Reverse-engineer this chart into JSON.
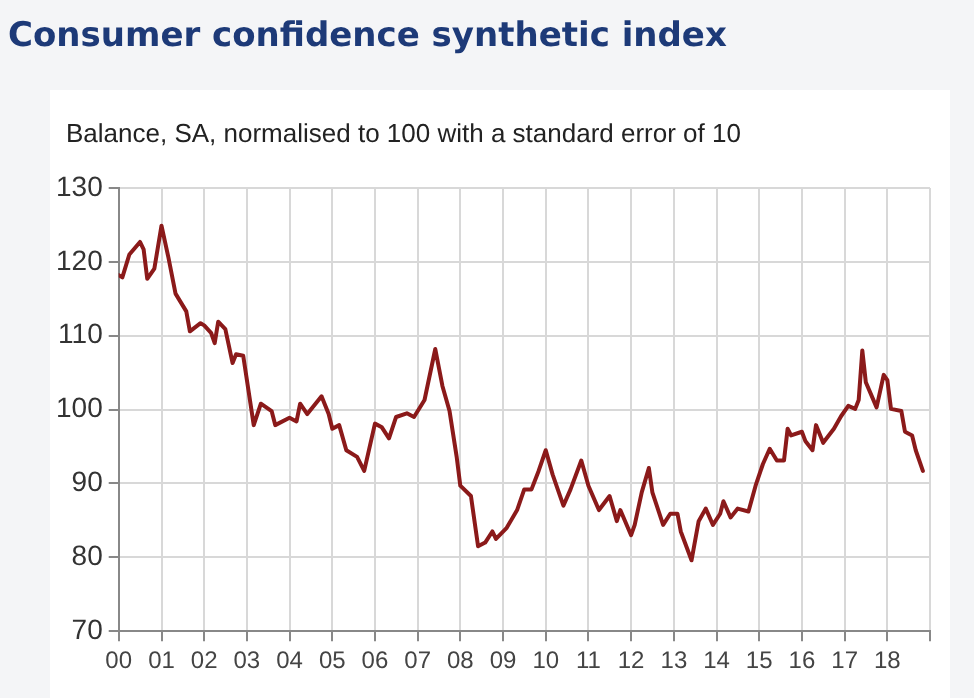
{
  "chart_data": {
    "type": "line",
    "title": "Consumer confidence synthetic index",
    "subtitle": "Balance, SA, normalised to 100 with a standard error of 10",
    "x": [
      "2000-01",
      "2000-02",
      "2000-04",
      "2000-07",
      "2000-08",
      "2000-09",
      "2000-11",
      "2001-01",
      "2001-03",
      "2001-05",
      "2001-08",
      "2001-09",
      "2001-12",
      "2002-01",
      "2002-03",
      "2002-04",
      "2002-05",
      "2002-07",
      "2002-08",
      "2002-09",
      "2002-10",
      "2002-12",
      "2003-03",
      "2003-05",
      "2003-08",
      "2003-09",
      "2004-01",
      "2004-03",
      "2004-04",
      "2004-06",
      "2004-10",
      "2004-12",
      "2005-01",
      "2005-03",
      "2005-05",
      "2005-08",
      "2005-10",
      "2006-01",
      "2006-03",
      "2006-05",
      "2006-07",
      "2006-10",
      "2006-12",
      "2007-03",
      "2007-06",
      "2007-08",
      "2007-10",
      "2007-12",
      "2008-01",
      "2008-04",
      "2008-06",
      "2008-08",
      "2008-10",
      "2008-11",
      "2009-02",
      "2009-05",
      "2009-07",
      "2009-09",
      "2009-11",
      "2010-01",
      "2010-03",
      "2010-06",
      "2010-08",
      "2010-11",
      "2011-01",
      "2011-04",
      "2011-07",
      "2011-09",
      "2011-10",
      "2012-01",
      "2012-02",
      "2012-04",
      "2012-06",
      "2012-07",
      "2012-10",
      "2012-12",
      "2013-02",
      "2013-03",
      "2013-06",
      "2013-08",
      "2013-10",
      "2013-12",
      "2014-02",
      "2014-03",
      "2014-05",
      "2014-07",
      "2014-10",
      "2014-12",
      "2015-02",
      "2015-04",
      "2015-06",
      "2015-08",
      "2015-09",
      "2015-10",
      "2016-01",
      "2016-02",
      "2016-04",
      "2016-05",
      "2016-07",
      "2016-10",
      "2016-12",
      "2017-02",
      "2017-04",
      "2017-05",
      "2017-06",
      "2017-07",
      "2017-10",
      "2017-12",
      "2018-01",
      "2018-02",
      "2018-05",
      "2018-06",
      "2018-08",
      "2018-09",
      "2018-11"
    ],
    "series": [
      {
        "color": "#8b1a1a",
        "values": [
          118.2,
          117.9,
          121,
          122.7,
          121.7,
          117.7,
          119.1,
          124.9,
          120.6,
          115.7,
          113.3,
          110.6,
          111.7,
          111.4,
          110.4,
          109,
          111.9,
          110.9,
          108.6,
          106.3,
          107.5,
          107.3,
          97.9,
          100.8,
          99.8,
          97.9,
          98.9,
          98.4,
          100.8,
          99.4,
          101.8,
          99.4,
          97.4,
          97.9,
          94.5,
          93.6,
          91.7,
          98.1,
          97.6,
          96.1,
          99,
          99.5,
          99,
          101.3,
          108.2,
          103.2,
          99.8,
          93.6,
          89.7,
          88.3,
          81.5,
          82,
          83.5,
          82.5,
          84,
          86.4,
          89.2,
          89.2,
          91.7,
          94.5,
          91.2,
          87,
          89.2,
          93.1,
          89.7,
          86.4,
          88.3,
          84.9,
          86.4,
          83,
          84.4,
          88.8,
          92.1,
          88.8,
          84.4,
          85.9,
          85.9,
          83.5,
          79.6,
          84.9,
          86.6,
          84.4,
          85.9,
          87.6,
          85.4,
          86.6,
          86.2,
          89.7,
          92.6,
          94.7,
          93.1,
          93.1,
          97.4,
          96.5,
          97,
          95.7,
          94.5,
          97.9,
          95.5,
          97.4,
          99.1,
          100.5,
          100.1,
          101.3,
          108,
          103.7,
          100.3,
          104.7,
          104,
          100.1,
          99.8,
          97,
          96.5,
          94.5,
          91.7
        ]
      }
    ],
    "xlim": [
      "2000",
      "2019"
    ],
    "xticks": [
      {
        "value": "2000",
        "label": "00"
      },
      {
        "value": "2001",
        "label": "01"
      },
      {
        "value": "2002",
        "label": "02"
      },
      {
        "value": "2003",
        "label": "03"
      },
      {
        "value": "2004",
        "label": "04"
      },
      {
        "value": "2005",
        "label": "05"
      },
      {
        "value": "2006",
        "label": "06"
      },
      {
        "value": "2007",
        "label": "07"
      },
      {
        "value": "2008",
        "label": "08"
      },
      {
        "value": "2009",
        "label": "09"
      },
      {
        "value": "2010",
        "label": "10"
      },
      {
        "value": "2011",
        "label": "11"
      },
      {
        "value": "2012",
        "label": "12"
      },
      {
        "value": "2013",
        "label": "13"
      },
      {
        "value": "2014",
        "label": "14"
      },
      {
        "value": "2015",
        "label": "15"
      },
      {
        "value": "2016",
        "label": "16"
      },
      {
        "value": "2017",
        "label": "17"
      },
      {
        "value": "2018",
        "label": "18"
      },
      {
        "value": "2019",
        "label": null
      }
    ],
    "ylim": [
      70,
      130
    ],
    "yticks": [
      70,
      80,
      90,
      100,
      110,
      120,
      130
    ],
    "grid": true,
    "legend": false,
    "marker": "none",
    "line_style": "solid"
  }
}
